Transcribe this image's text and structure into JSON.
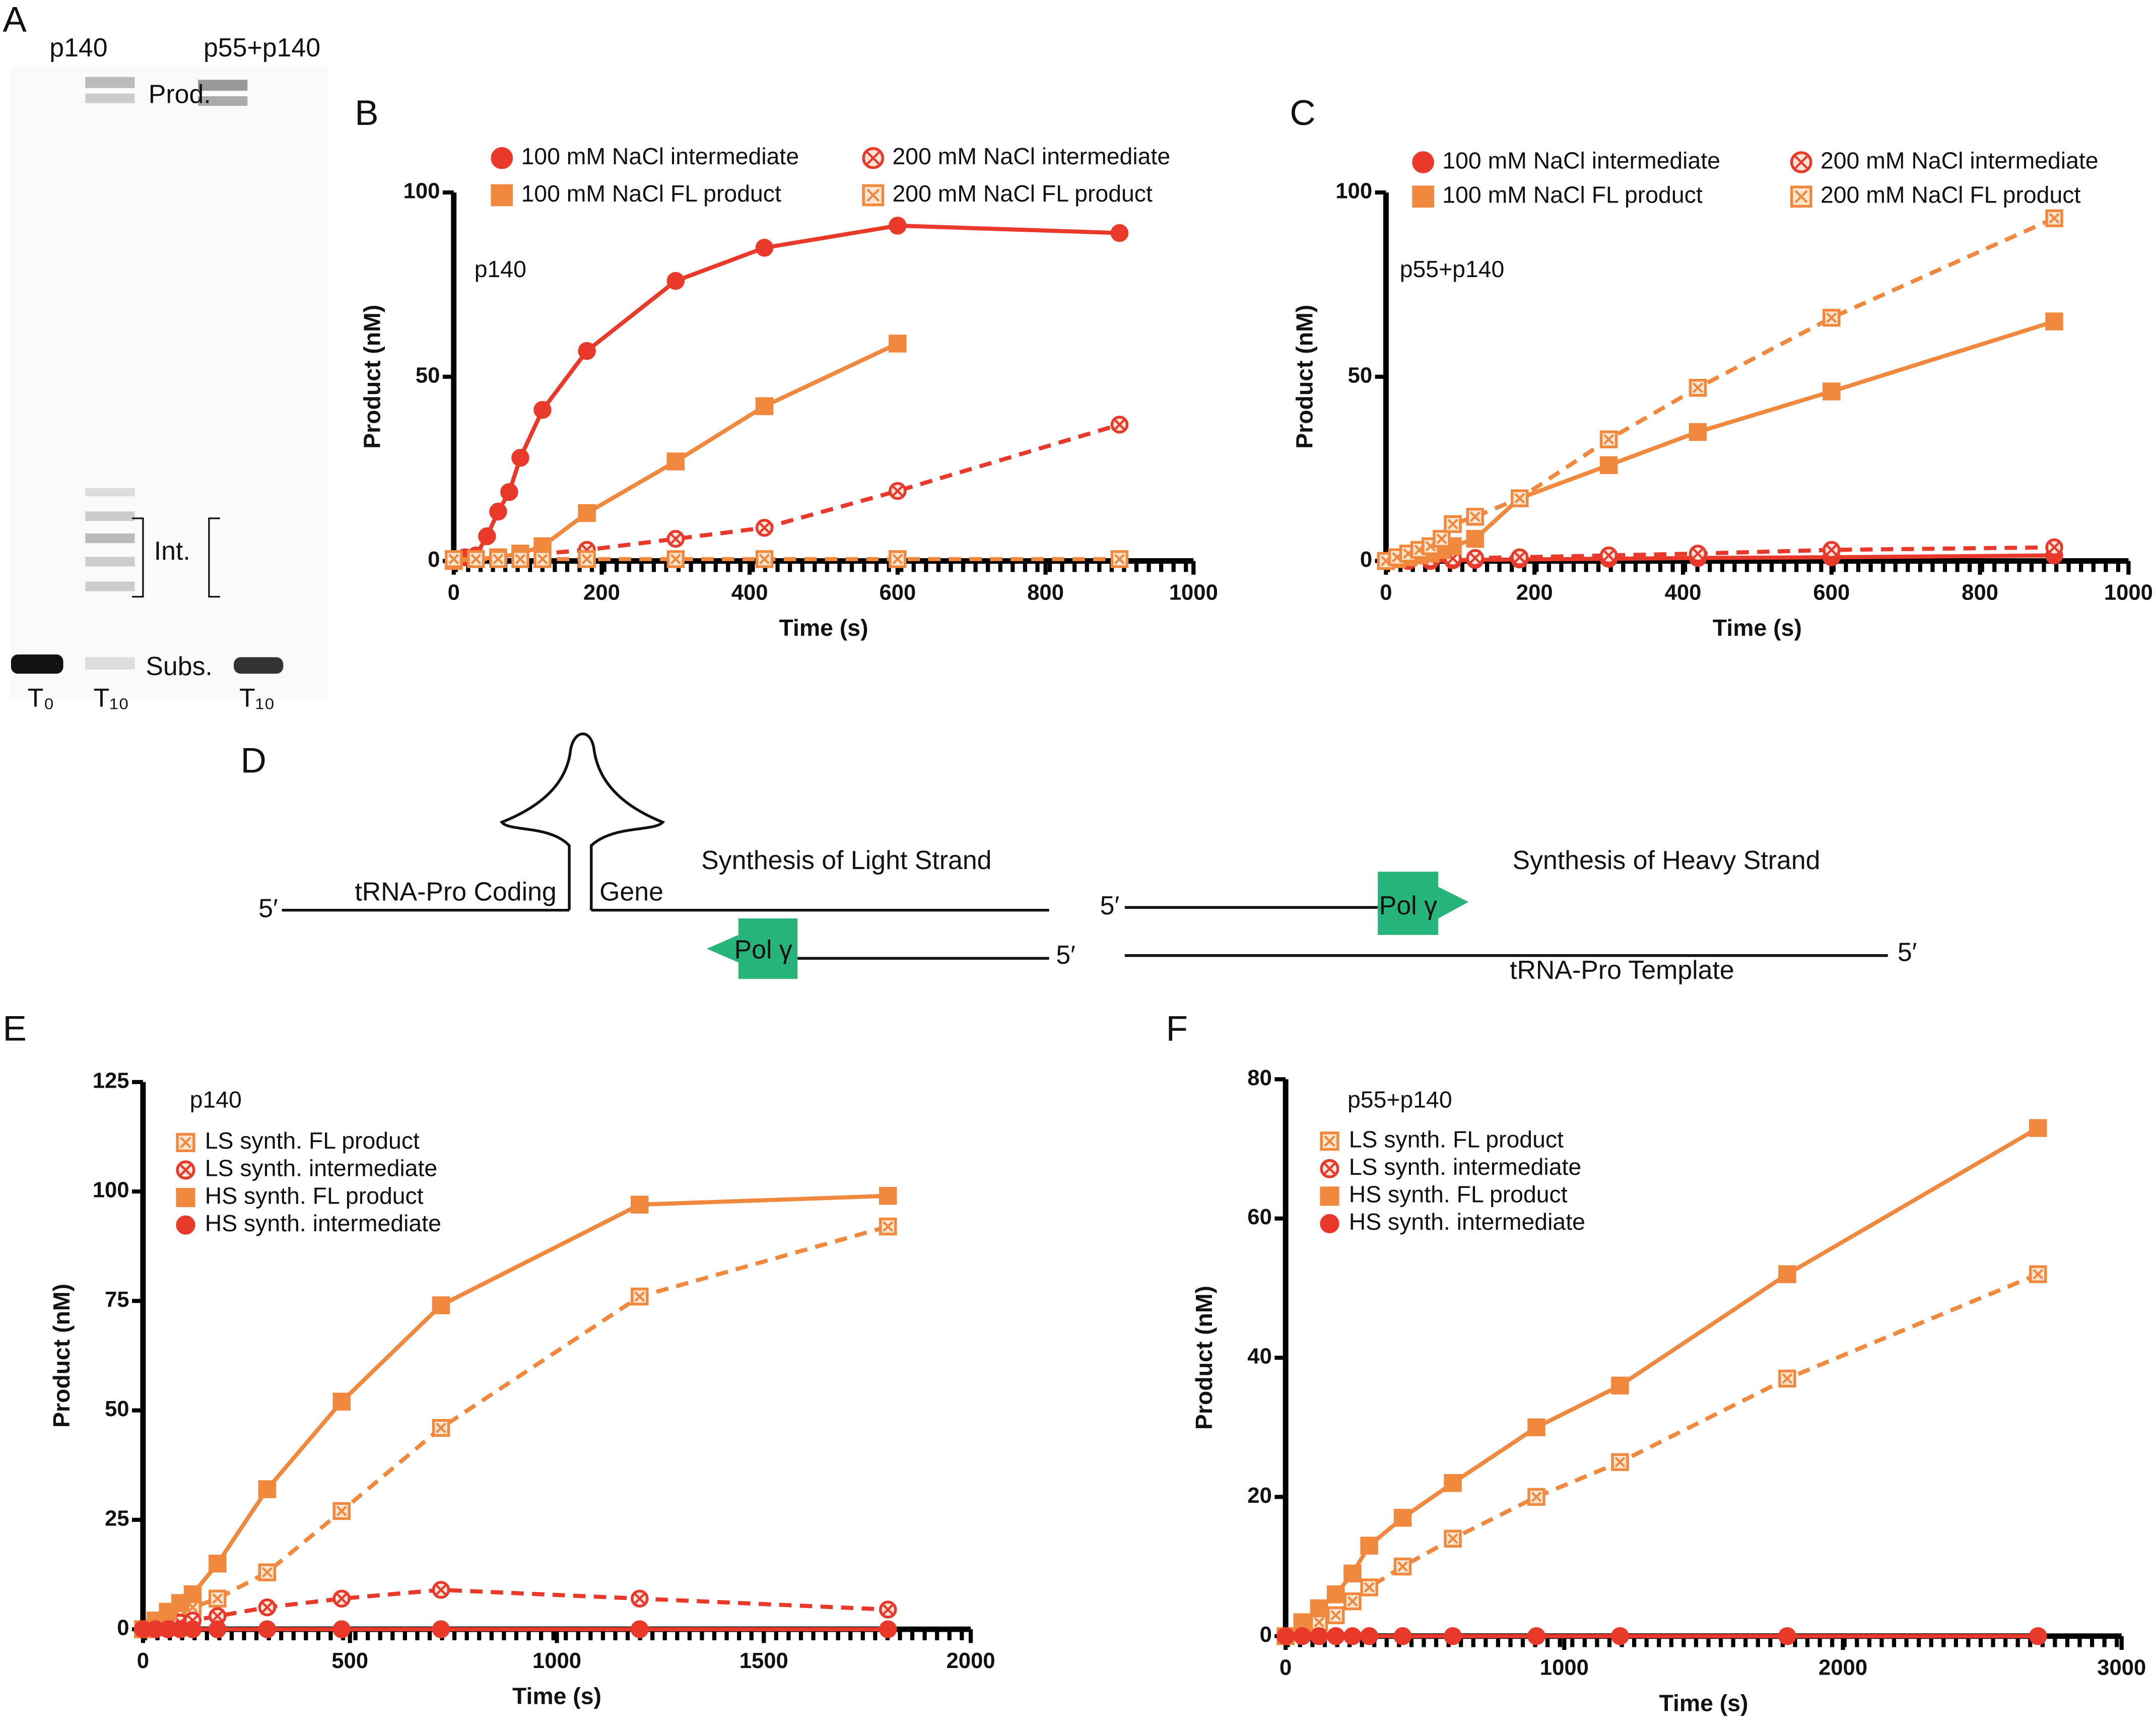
{
  "panel_labels": [
    "A",
    "B",
    "C",
    "D",
    "E",
    "F"
  ],
  "gel": {
    "lanes": [
      "p140",
      "p55+p140"
    ],
    "bands": [
      "Prod.",
      "Int.",
      "Subs."
    ],
    "times": [
      "T₀",
      "T₁₀",
      "T₁₀"
    ]
  },
  "diagram": {
    "light": {
      "title": "Synthesis of Light Strand",
      "coding": "tRNA-Pro Coding",
      "gene": "Gene",
      "ends": [
        "5′",
        "5′"
      ],
      "enzyme": "Pol γ"
    },
    "heavy": {
      "title": "Synthesis of Heavy Strand",
      "template": "tRNA-Pro Template",
      "ends": [
        "5′",
        "5′"
      ],
      "enzyme": "Pol γ"
    }
  },
  "chart_data": [
    {
      "type": "scatter",
      "annotation": "p140",
      "xlabel": "Time (s)",
      "ylabel": "Product (nM)",
      "legend": "top",
      "xlim": [
        0,
        1000
      ],
      "ylim": [
        0,
        100
      ],
      "xticks": [
        0,
        200,
        400,
        600,
        800,
        1000
      ],
      "yticks": [
        0,
        50,
        100
      ],
      "series": [
        {
          "name": "100 mM NaCl intermediate",
          "color": "#e8392a",
          "marker": "circle",
          "filled": true,
          "line": "solid",
          "x": [
            0,
            15,
            30,
            45,
            60,
            75,
            90,
            120,
            180,
            300,
            420,
            600,
            900
          ],
          "values": [
            0,
            1,
            1.5,
            6.7,
            13.4,
            18.7,
            28,
            41,
            57,
            76,
            85,
            91,
            89
          ]
        },
        {
          "name": "200 mM NaCl intermediate",
          "color": "#e8392a",
          "marker": "circle",
          "filled": false,
          "line": "dashed",
          "x": [
            0,
            30,
            60,
            90,
            120,
            180,
            300,
            420,
            600,
            900
          ],
          "values": [
            0,
            0.5,
            1,
            1.5,
            2,
            3,
            6,
            9,
            19,
            37
          ]
        },
        {
          "name": "100 mM NaCl FL product",
          "color": "#f0883e",
          "marker": "square",
          "filled": true,
          "line": "solid",
          "x": [
            0,
            30,
            60,
            90,
            120,
            180,
            300,
            420,
            600
          ],
          "values": [
            0,
            0.5,
            1,
            2,
            4,
            13,
            27,
            42,
            59
          ]
        },
        {
          "name": "200 mM NaCl FL product",
          "color": "#f0883e",
          "marker": "square",
          "filled": false,
          "line": "dashed",
          "x": [
            0,
            30,
            60,
            90,
            120,
            180,
            300,
            420,
            600,
            900
          ],
          "values": [
            0.5,
            0.5,
            0.5,
            0.5,
            0.5,
            0.5,
            0.5,
            0.5,
            0.5,
            0.5
          ]
        }
      ]
    },
    {
      "type": "scatter",
      "annotation": "p55+p140",
      "xlabel": "Time (s)",
      "ylabel": "Product (nM)",
      "legend": "top",
      "xlim": [
        0,
        1000
      ],
      "ylim": [
        0,
        100
      ],
      "xticks": [
        0,
        200,
        400,
        600,
        800,
        1000
      ],
      "yticks": [
        0,
        50,
        100
      ],
      "series": [
        {
          "name": "100 mM NaCl intermediate",
          "color": "#e8392a",
          "marker": "circle",
          "filled": true,
          "line": "solid",
          "x": [
            0,
            30,
            60,
            90,
            120,
            180,
            300,
            420,
            600,
            900
          ],
          "values": [
            0,
            0,
            0,
            0.2,
            0.3,
            0.4,
            0.6,
            0.8,
            1,
            1.5
          ]
        },
        {
          "name": "200 mM NaCl intermediate",
          "color": "#e8392a",
          "marker": "circle",
          "filled": false,
          "line": "dashed",
          "x": [
            0,
            30,
            60,
            90,
            120,
            180,
            300,
            420,
            600,
            900
          ],
          "values": [
            0,
            0.3,
            0.5,
            0.7,
            0.8,
            1,
            1.5,
            2,
            3,
            3.7
          ]
        },
        {
          "name": "100 mM NaCl FL product",
          "color": "#f0883e",
          "marker": "square",
          "filled": true,
          "line": "solid",
          "x": [
            0,
            15,
            30,
            45,
            60,
            75,
            90,
            120,
            180,
            300,
            420,
            600,
            900
          ],
          "values": [
            0,
            0.5,
            1,
            1.5,
            2,
            3,
            4,
            6,
            17,
            26,
            35,
            46,
            65
          ]
        },
        {
          "name": "200 mM NaCl FL product",
          "color": "#f0883e",
          "marker": "square",
          "filled": false,
          "line": "dashed",
          "x": [
            0,
            15,
            30,
            45,
            60,
            75,
            90,
            120,
            180,
            300,
            420,
            600,
            900
          ],
          "values": [
            0,
            1,
            2,
            3,
            4,
            6,
            10,
            12,
            17,
            33,
            47,
            66,
            93
          ]
        }
      ]
    },
    {
      "type": "scatter",
      "annotation": "p140",
      "xlabel": "Time (s)",
      "ylabel": "Product (nM)",
      "legend": "upper left",
      "xlim": [
        0,
        2000
      ],
      "ylim": [
        0,
        125
      ],
      "xticks": [
        0,
        500,
        1000,
        1500,
        2000
      ],
      "yticks": [
        0,
        25,
        50,
        75,
        100,
        125
      ],
      "series": [
        {
          "name": "LS synth. FL product",
          "color": "#f0883e",
          "marker": "square",
          "filled": false,
          "line": "dashed",
          "x": [
            0,
            30,
            60,
            90,
            120,
            180,
            300,
            480,
            720,
            1200,
            1800
          ],
          "values": [
            0,
            1,
            2,
            3,
            5,
            7,
            13,
            27,
            46,
            76,
            92
          ]
        },
        {
          "name": "LS synth. intermediate",
          "color": "#e8392a",
          "marker": "circle",
          "filled": false,
          "line": "dashed",
          "x": [
            0,
            30,
            60,
            90,
            120,
            180,
            300,
            480,
            720,
            1200,
            1800
          ],
          "values": [
            0,
            0.5,
            1,
            1.5,
            2,
            3,
            5,
            7,
            9,
            7,
            4.5
          ]
        },
        {
          "name": "HS synth. FL product",
          "color": "#f0883e",
          "marker": "square",
          "filled": true,
          "line": "solid",
          "x": [
            0,
            30,
            60,
            90,
            120,
            180,
            300,
            480,
            720,
            1200,
            1800
          ],
          "values": [
            0,
            2,
            4,
            6,
            8,
            15,
            32,
            52,
            74,
            97,
            99
          ]
        },
        {
          "name": "HS synth. intermediate",
          "color": "#e8392a",
          "marker": "circle",
          "filled": true,
          "line": "solid",
          "x": [
            0,
            30,
            60,
            90,
            120,
            180,
            300,
            480,
            720,
            1200,
            1800
          ],
          "values": [
            0,
            0,
            0,
            0,
            0,
            0,
            0,
            0,
            0,
            0,
            0
          ]
        }
      ]
    },
    {
      "type": "scatter",
      "annotation": "p55+p140",
      "xlabel": "Time (s)",
      "ylabel": "Product (nM)",
      "legend": "upper left",
      "xlim": [
        0,
        3000
      ],
      "ylim": [
        0,
        80
      ],
      "xticks": [
        0,
        1000,
        2000,
        3000
      ],
      "yticks": [
        0,
        20,
        40,
        60,
        80
      ],
      "series": [
        {
          "name": "LS synth. FL product",
          "color": "#f0883e",
          "marker": "square",
          "filled": false,
          "line": "dashed",
          "x": [
            0,
            60,
            120,
            180,
            240,
            300,
            420,
            600,
            900,
            1200,
            1800,
            2700
          ],
          "values": [
            0,
            1,
            2,
            3,
            5,
            7,
            10,
            14,
            20,
            25,
            37,
            52
          ]
        },
        {
          "name": "LS synth. intermediate",
          "color": "#e8392a",
          "marker": "circle",
          "filled": false,
          "line": "dashed",
          "x": [
            0,
            60,
            120,
            180,
            240,
            300,
            420,
            600,
            900,
            1200,
            1800,
            2700
          ],
          "values": [
            0,
            0,
            0,
            0,
            0,
            0,
            0,
            0,
            0,
            0,
            0,
            0
          ]
        },
        {
          "name": "HS synth. FL product",
          "color": "#f0883e",
          "marker": "square",
          "filled": true,
          "line": "solid",
          "x": [
            0,
            60,
            120,
            180,
            240,
            300,
            420,
            600,
            900,
            1200,
            1800,
            2700
          ],
          "values": [
            0,
            2,
            4,
            6,
            9,
            13,
            17,
            22,
            30,
            36,
            52,
            73
          ]
        },
        {
          "name": "HS synth. intermediate",
          "color": "#e8392a",
          "marker": "circle",
          "filled": true,
          "line": "solid",
          "x": [
            0,
            60,
            120,
            180,
            240,
            300,
            420,
            600,
            900,
            1200,
            1800,
            2700
          ],
          "values": [
            0,
            0,
            0,
            0,
            0,
            0,
            0,
            0,
            0,
            0,
            0,
            0
          ]
        }
      ]
    }
  ]
}
